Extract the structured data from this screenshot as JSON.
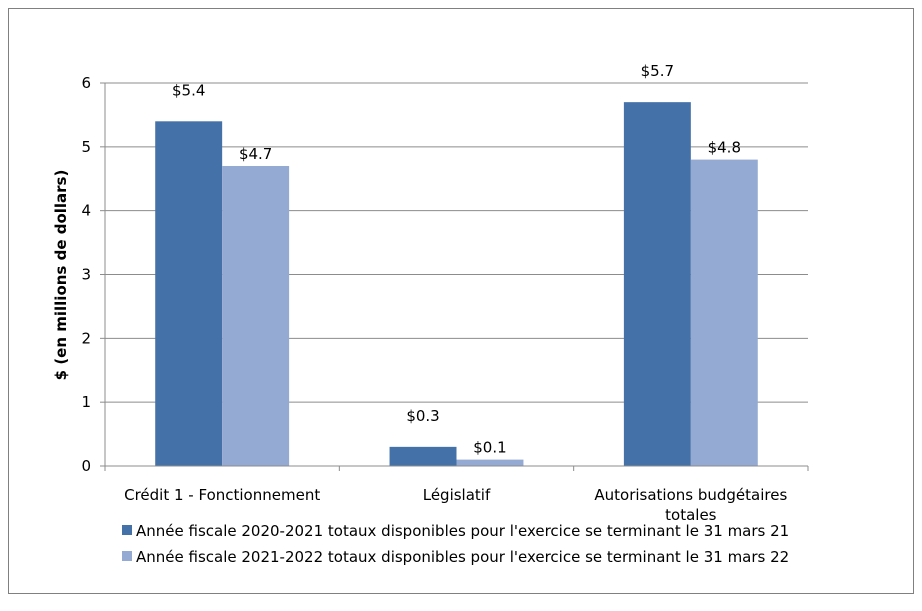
{
  "chart_data": {
    "type": "bar",
    "categories": [
      [
        "Crédit 1 - Fonctionnement"
      ],
      [
        "Législatif"
      ],
      [
        "Autorisations budgétaires",
        "totales"
      ]
    ],
    "series": [
      {
        "name": "Année fiscale 2020-2021 totaux disponibles pour l'exercice se terminant le 31 mars 21",
        "values": [
          5.4,
          0.3,
          5.7
        ],
        "labels": [
          "$5.4",
          "$0.3",
          "$5.7"
        ],
        "color": "#4472A8"
      },
      {
        "name": "Année fiscale 2021-2022 totaux disponibles pour l'exercice se terminant le 31 mars 22",
        "values": [
          4.7,
          0.1,
          4.8
        ],
        "labels": [
          "$4.7",
          "$0.1",
          "$4.8"
        ],
        "color": "#95AAD3"
      }
    ],
    "ylabel": "$ (en millions de dollars)",
    "ylim": [
      0,
      6
    ],
    "yticks": [
      "0",
      "1",
      "2",
      "3",
      "4",
      "5",
      "6"
    ],
    "grid": true,
    "legend_position": "bottom"
  }
}
